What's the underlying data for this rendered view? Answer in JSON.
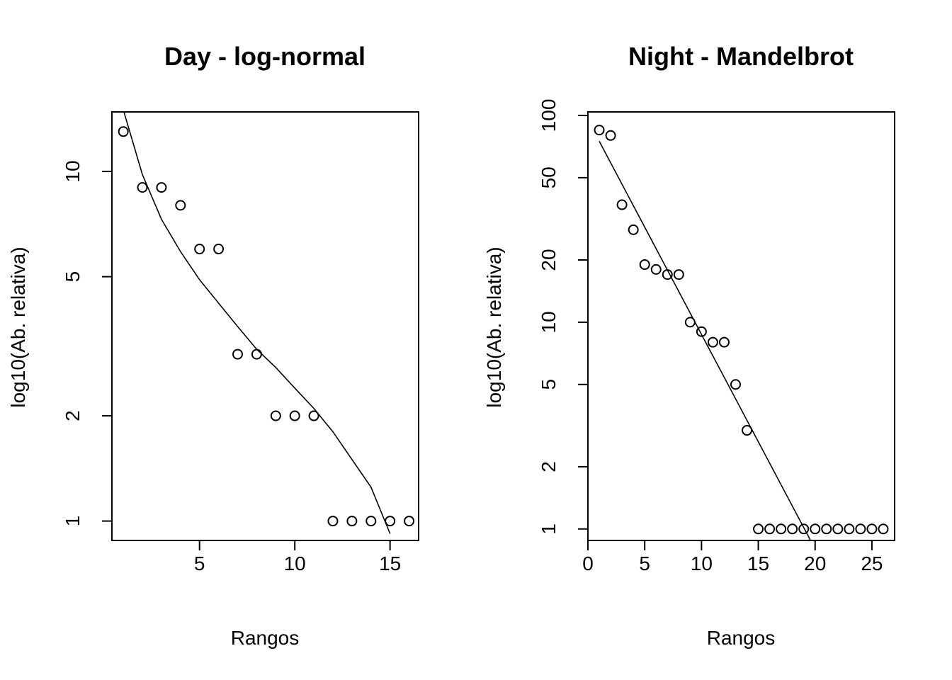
{
  "chart_data": [
    {
      "type": "scatter",
      "title": "Day - log-normal",
      "xlabel": "Rangos",
      "ylabel": "log10(Ab. relativa)",
      "y_scale": "log",
      "xlim": [
        0.4,
        16.5
      ],
      "ylim": [
        0.88,
        14.8
      ],
      "x_ticks": [
        5,
        10,
        15
      ],
      "y_ticks": [
        1,
        2,
        5,
        10
      ],
      "grid": false,
      "points": {
        "x": [
          1,
          2,
          3,
          4,
          5,
          6,
          7,
          8,
          9,
          10,
          11,
          12,
          13,
          14,
          15,
          16
        ],
        "y": [
          13,
          9,
          9,
          8,
          6,
          6,
          3,
          3,
          2,
          2,
          2,
          1,
          1,
          1,
          1,
          1
        ]
      },
      "fitted_line": {
        "x": [
          1,
          2,
          3,
          4,
          5,
          6,
          7,
          8,
          9,
          10,
          11,
          12,
          13,
          14,
          15
        ],
        "y": [
          15.0,
          9.8,
          7.3,
          5.9,
          4.9,
          4.2,
          3.6,
          3.1,
          2.75,
          2.4,
          2.1,
          1.8,
          1.5,
          1.25,
          0.92
        ]
      }
    },
    {
      "type": "scatter",
      "title": "Night - Mandelbrot",
      "xlabel": "Rangos",
      "ylabel": "log10(Ab. relativa)",
      "y_scale": "log",
      "xlim": [
        0,
        27
      ],
      "ylim": [
        0.88,
        104
      ],
      "x_ticks": [
        0,
        5,
        10,
        15,
        20,
        25
      ],
      "y_ticks": [
        1,
        2,
        5,
        10,
        20,
        50,
        100
      ],
      "grid": false,
      "points": {
        "x": [
          1,
          2,
          3,
          4,
          5,
          6,
          7,
          8,
          9,
          10,
          11,
          12,
          13,
          14,
          15,
          16,
          17,
          18,
          19,
          20,
          21,
          22,
          23,
          24,
          25,
          26
        ],
        "y": [
          85,
          80,
          37,
          28,
          19,
          18,
          17,
          17,
          10,
          9,
          8,
          8,
          5,
          3,
          1,
          1,
          1,
          1,
          1,
          1,
          1,
          1,
          1,
          1,
          1,
          1
        ]
      },
      "fitted_line": {
        "x": [
          1,
          19.6
        ],
        "y": [
          75,
          0.88
        ]
      }
    }
  ]
}
